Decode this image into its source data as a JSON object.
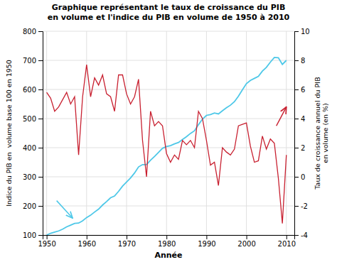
{
  "chart_data": {
    "type": "line",
    "title": "Graphique représentant le taux de croissance du PIB\nen volume et l'indice du PIB en volume de 1950 à 2010",
    "x_label": "Année",
    "y_label": "Indice du PIB en  volume base 100 en 1950",
    "y2_label": "Taux de croissance annuel du PIB\nen volume (en %)",
    "x": [
      1950,
      1951,
      1952,
      1953,
      1954,
      1955,
      1956,
      1957,
      1958,
      1959,
      1960,
      1961,
      1962,
      1963,
      1964,
      1965,
      1966,
      1967,
      1968,
      1969,
      1970,
      1971,
      1972,
      1973,
      1974,
      1975,
      1976,
      1977,
      1978,
      1979,
      1980,
      1981,
      1982,
      1983,
      1984,
      1985,
      1986,
      1987,
      1988,
      1989,
      1990,
      1991,
      1992,
      1993,
      1994,
      1995,
      1996,
      1997,
      1998,
      1999,
      2000,
      2001,
      2002,
      2003,
      2004,
      2005,
      2006,
      2007,
      2008,
      2009,
      2010
    ],
    "series": [
      {
        "color": "#4ec8e8",
        "values": [
          100,
          106,
          110,
          114,
          120,
          128,
          134,
          140,
          141,
          149,
          160,
          168,
          179,
          189,
          203,
          215,
          228,
          234,
          250,
          268,
          282,
          296,
          313,
          334,
          342,
          342,
          357,
          370,
          384,
          398,
          404,
          407,
          413,
          418,
          428,
          438,
          449,
          458,
          479,
          498,
          511,
          514,
          519,
          516,
          527,
          537,
          546,
          558,
          577,
          599,
          620,
          631,
          638,
          645,
          663,
          676,
          694,
          710,
          709,
          686,
          700
        ]
      },
      {
        "color": "#c82030",
        "axis": "y2",
        "values": [
          5.8,
          5.4,
          4.5,
          4.8,
          5.3,
          5.8,
          5.0,
          5.5,
          1.5,
          5.5,
          7.7,
          5.5,
          6.8,
          6.3,
          7.0,
          5.7,
          5.5,
          4.5,
          7.0,
          7.0,
          5.7,
          5.0,
          5.5,
          6.7,
          2.5,
          0.0,
          4.5,
          3.5,
          3.8,
          3.5,
          1.6,
          1.0,
          1.5,
          1.2,
          2.5,
          2.2,
          2.5,
          2.0,
          4.5,
          4.0,
          2.5,
          0.8,
          1.0,
          -0.6,
          2.0,
          1.7,
          1.5,
          1.9,
          3.5,
          3.6,
          3.7,
          2.1,
          1.0,
          1.1,
          2.8,
          1.9,
          2.6,
          2.3,
          -0.1,
          -3.2,
          1.5
        ]
      }
    ],
    "annotations": [
      {
        "x": 1956.5,
        "y": 158,
        "x_from": 1952.5,
        "y_from": 218
      },
      {
        "x": 2010,
        "y": 4.8,
        "x_from": 2007.5,
        "y_from": 3.5,
        "axis": "y2"
      }
    ],
    "xlim": [
      1949,
      2012
    ],
    "xticks": [
      1950,
      1960,
      1970,
      1980,
      1990,
      2000,
      2010
    ],
    "ylim": [
      100,
      800
    ],
    "yticks": [
      100,
      200,
      300,
      400,
      500,
      600,
      700,
      800
    ],
    "y2lim": [
      -4,
      10
    ],
    "y2ticks": [
      -4,
      -2,
      0,
      2,
      4,
      6,
      8,
      10
    ],
    "grid": true
  }
}
